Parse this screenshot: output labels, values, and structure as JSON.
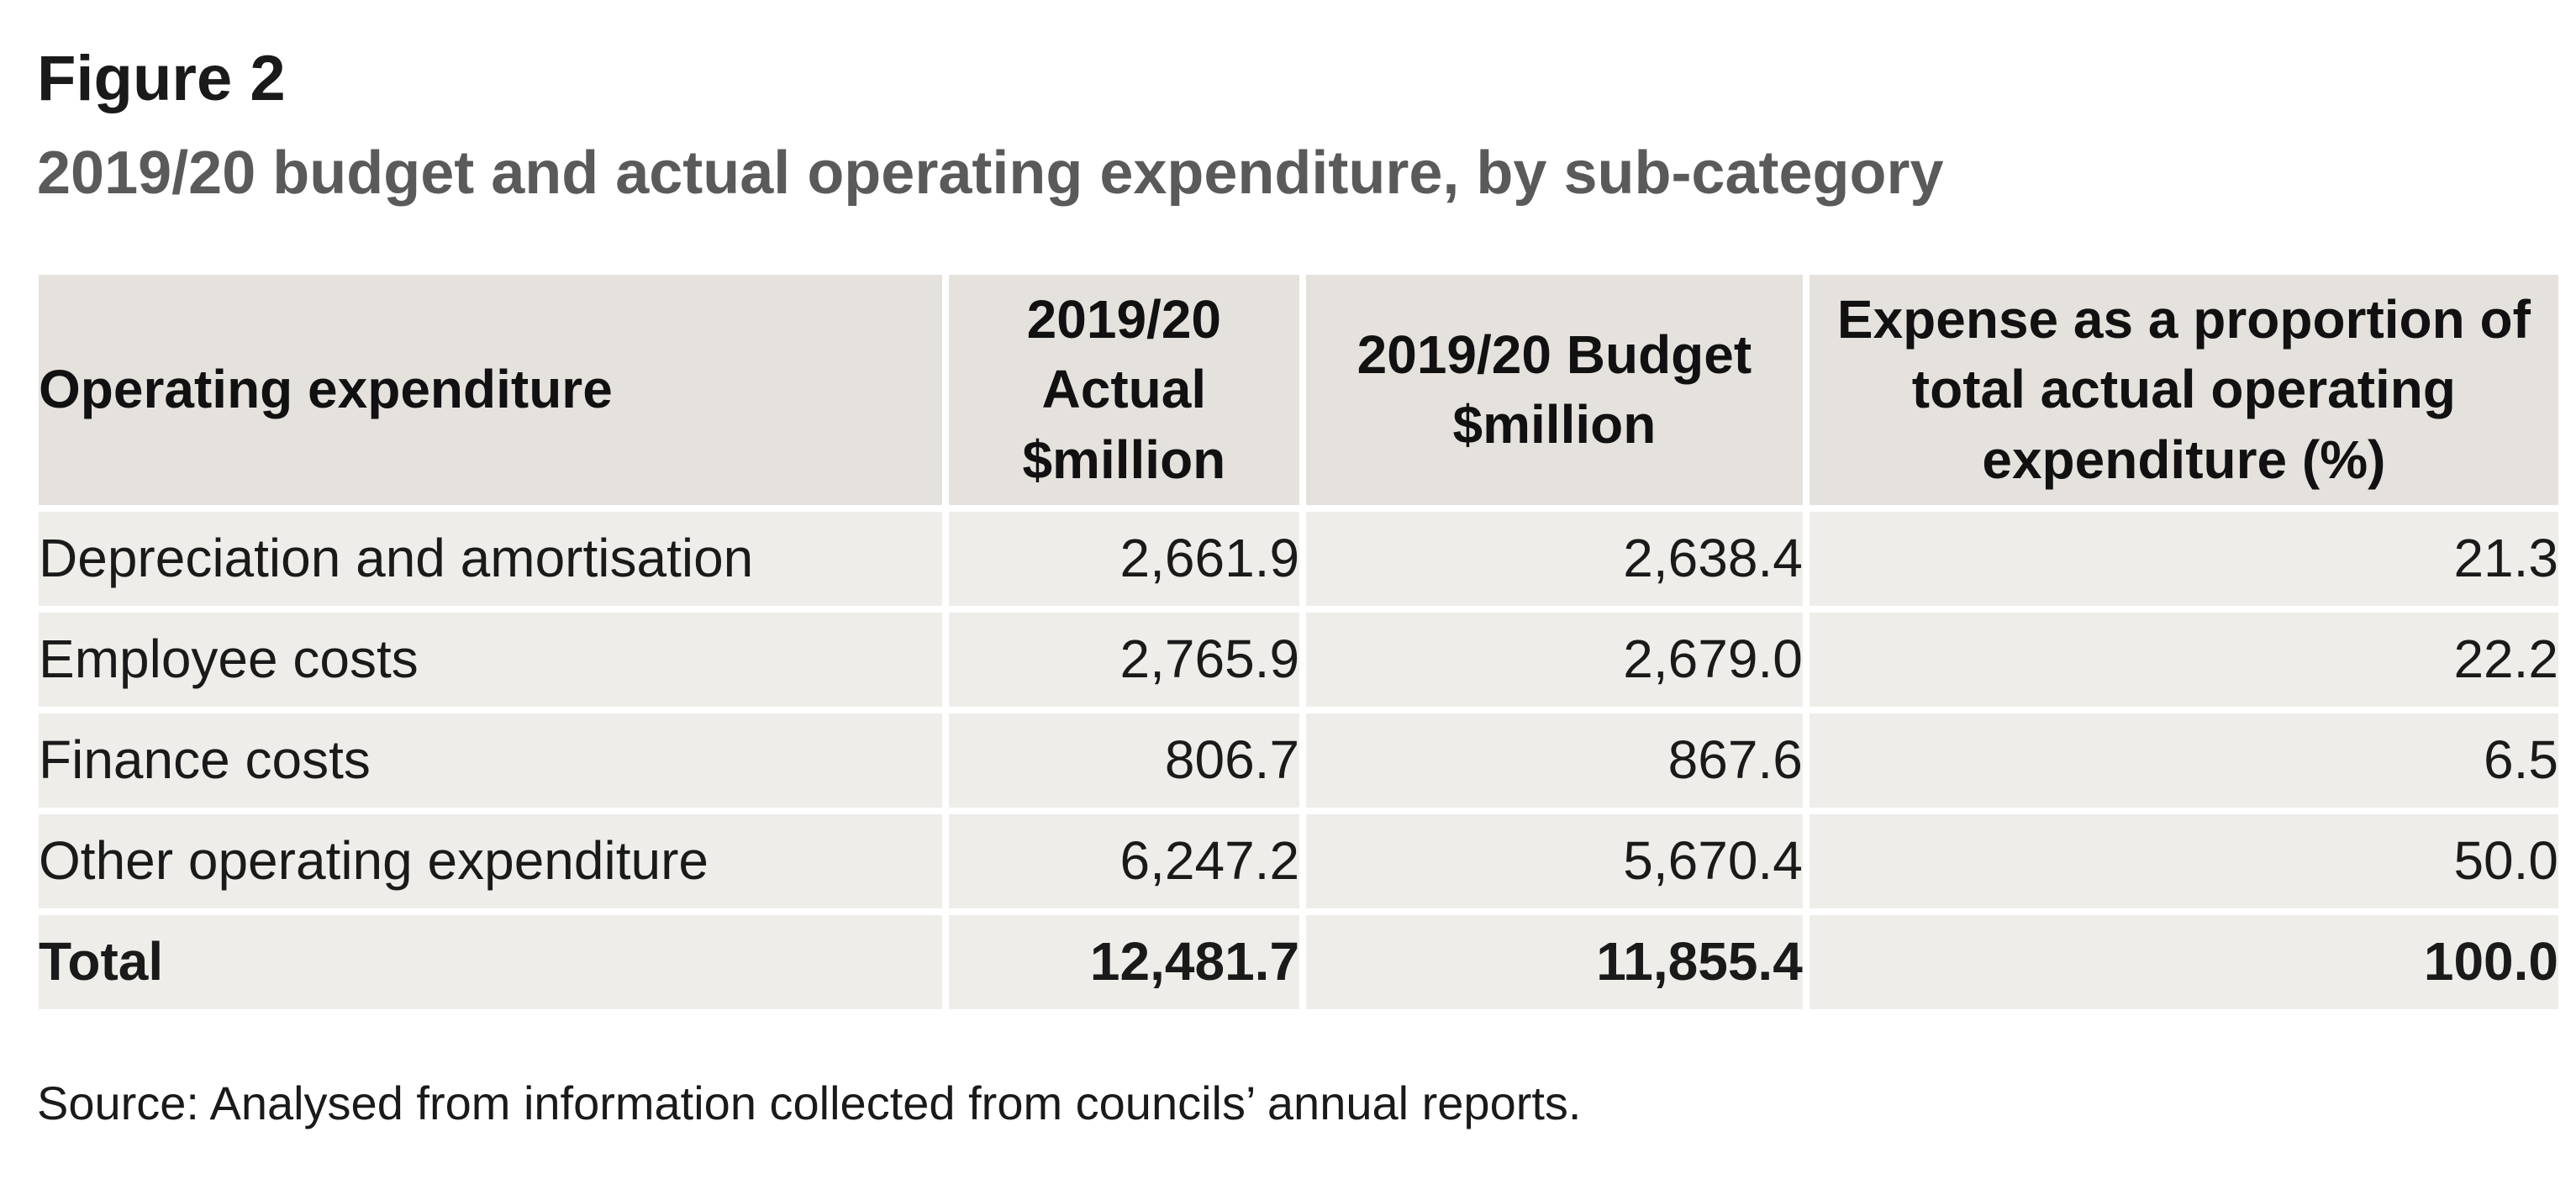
{
  "figure": {
    "label": "Figure 2",
    "title": "2019/20 budget and actual operating expenditure, by sub-category"
  },
  "table": {
    "headers": [
      "Operating expenditure",
      "2019/20 Actual $million",
      "2019/20 Budget $million",
      "Expense as a proportion of total actual operating expenditure (%)"
    ],
    "rows": [
      [
        "Depreciation and amortisation",
        "2,661.9",
        "2,638.4",
        "21.3"
      ],
      [
        "Employee costs",
        "2,765.9",
        "2,679.0",
        "22.2"
      ],
      [
        "Finance costs",
        "806.7",
        "867.6",
        "6.5"
      ],
      [
        "Other operating expenditure",
        "6,247.2",
        "5,670.4",
        "50.0"
      ]
    ],
    "total": [
      "Total",
      "12,481.7",
      "11,855.4",
      "100.0"
    ]
  },
  "source": "Source: Analysed from information collected from councils’ annual reports.",
  "colors": {
    "header_bg": "#e5e2de",
    "row_bg": "#eeede9",
    "title_color": "#5a5a5a"
  }
}
